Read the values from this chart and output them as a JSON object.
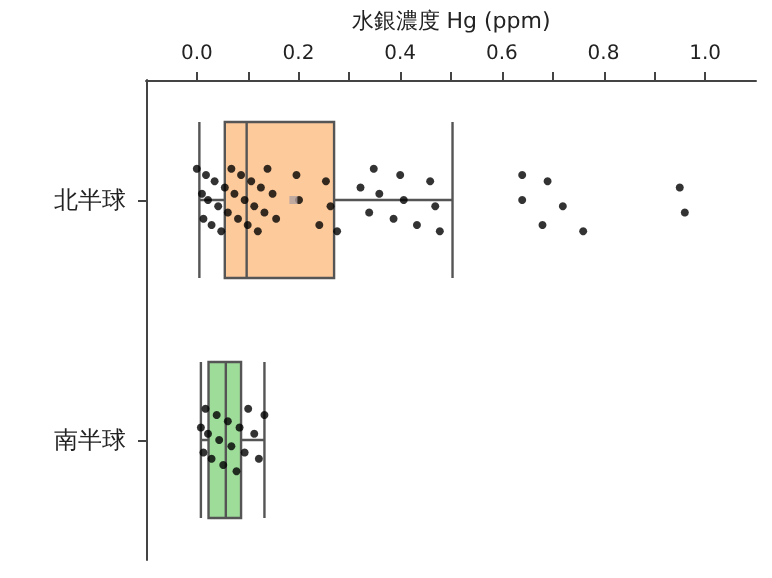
{
  "chart_data": {
    "type": "box",
    "orientation": "horizontal",
    "xlabel": "水銀濃度 Hg (ppm)",
    "categories": [
      "北半球",
      "南半球"
    ],
    "xlim": [
      -0.1,
      1.1
    ],
    "xticks": [
      {
        "value": 0,
        "label": "0.0"
      },
      {
        "value": 0.1,
        "label": null
      },
      0.2,
      {
        "value": 0.3,
        "label": null
      },
      0.4,
      {
        "value": 0.5,
        "label": null
      },
      0.6,
      {
        "value": 0.7,
        "label": null
      },
      0.8,
      {
        "value": 0.9,
        "label": null
      },
      {
        "value": 1,
        "label": "1.0"
      }
    ],
    "series": [
      {
        "type": "box",
        "colors": [
          "#fdca9c",
          "#9edc9a"
        ],
        "boxes": [
          {
            "low": 0.005,
            "q1": 0.055,
            "median": 0.098,
            "q3": 0.27,
            "high": 0.503,
            "mean": 0.19,
            "outliers": [
              0.64,
              0.64,
              0.68,
              0.69,
              0.72,
              0.76,
              0.95,
              0.96
            ]
          },
          {
            "low": 0.008,
            "q1": 0.023,
            "median": 0.057,
            "q3": 0.087,
            "high": 0.133
          }
        ]
      },
      {
        "type": "scatter",
        "color": "#000000",
        "x": [
          "北半球",
          "北半球",
          "北半球",
          "北半球",
          "北半球",
          "北半球",
          "北半球",
          "北半球",
          "北半球",
          "北半球",
          "北半球",
          "北半球",
          "北半球",
          "北半球",
          "北半球",
          "北半球",
          "北半球",
          "北半球",
          "北半球",
          "北半球",
          "北半球",
          "北半球",
          "北半球",
          "北半球",
          "北半球",
          "北半球",
          "北半球",
          "北半球",
          "北半球",
          "北半球",
          "北半球",
          "北半球",
          "北半球",
          "北半球",
          "北半球",
          "北半球",
          "北半球",
          "北半球",
          "北半球",
          "北半球",
          "北半球",
          "北半球",
          "南半球",
          "南半球",
          "南半球",
          "南半球",
          "南半球",
          "南半球",
          "南半球",
          "南半球",
          "南半球",
          "南半球",
          "南半球",
          "南半球",
          "南半球",
          "南半球",
          "南半球",
          "南半球",
          "南半球"
        ],
        "values": [
          0.0,
          0.01,
          0.013,
          0.018,
          0.022,
          0.029,
          0.035,
          0.042,
          0.048,
          0.055,
          0.061,
          0.068,
          0.074,
          0.081,
          0.087,
          0.094,
          0.1,
          0.107,
          0.113,
          0.12,
          0.126,
          0.133,
          0.139,
          0.149,
          0.156,
          0.196,
          0.201,
          0.241,
          0.254,
          0.263,
          0.276,
          0.322,
          0.339,
          0.348,
          0.359,
          0.387,
          0.4,
          0.407,
          0.433,
          0.459,
          0.469,
          0.478,
          0.008,
          0.013,
          0.017,
          0.022,
          0.029,
          0.039,
          0.044,
          0.052,
          0.061,
          0.068,
          0.078,
          0.084,
          0.094,
          0.101,
          0.113,
          0.122,
          0.133
        ]
      }
    ]
  }
}
